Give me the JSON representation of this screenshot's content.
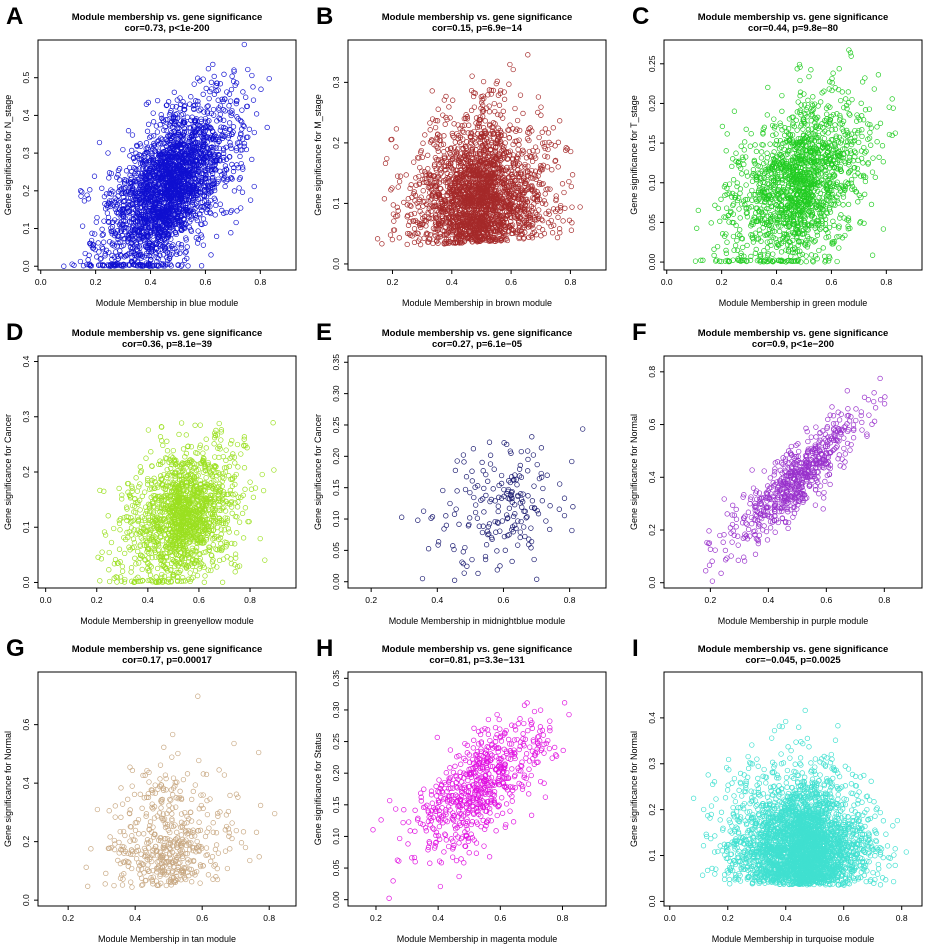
{
  "figure_title": "",
  "chart_data": [
    {
      "letter": "A",
      "type": "scatter",
      "title": "Module membership vs. gene significance",
      "subtitle": "cor=0.73, p<1e-200",
      "xlabel": "Module Membership in blue module",
      "ylabel": "Gene significance for  N_stage",
      "color": "#1010d0",
      "xlim": [
        -0.01,
        0.93
      ],
      "ylim": [
        -0.01,
        0.6
      ],
      "xticks": [
        0.0,
        0.2,
        0.4,
        0.6,
        0.8
      ],
      "yticks": [
        0.0,
        0.1,
        0.2,
        0.3,
        0.4,
        0.5
      ],
      "yticklabels": [
        "0.0",
        "0.1",
        "0.2",
        "0.3",
        "0.4",
        "0.5"
      ],
      "n_points": 2600,
      "gen": {
        "xmin": 0.03,
        "xmax": 0.92,
        "xmode": 0.45,
        "slope": 0.55,
        "intercept": -0.05,
        "noise": 0.09,
        "ymin": 0.0,
        "ymax": 0.59
      }
    },
    {
      "letter": "B",
      "type": "scatter",
      "title": "Module membership vs. gene significance",
      "subtitle": "cor=0.15, p=6.9e−14",
      "xlabel": "Module Membership in brown module",
      "ylabel": "Gene significance for  M_stage",
      "color": "#a52a2a",
      "xlim": [
        0.05,
        0.92
      ],
      "ylim": [
        -0.01,
        0.37
      ],
      "xticks": [
        0.2,
        0.4,
        0.6,
        0.8
      ],
      "yticks": [
        0.0,
        0.1,
        0.2,
        0.3
      ],
      "yticklabels": [
        "0.0",
        "0.1",
        "0.2",
        "0.3"
      ],
      "n_points": 2400,
      "gen": {
        "xmin": 0.08,
        "xmax": 0.9,
        "xmode": 0.5,
        "slope": 0.06,
        "intercept": 0.06,
        "noise": 0.07,
        "ymin": 0.0,
        "ymax": 0.36,
        "skew": true
      }
    },
    {
      "letter": "C",
      "type": "scatter",
      "title": "Module membership vs. gene significance",
      "subtitle": "cor=0.44, p=9.8e−80",
      "xlabel": "Module Membership in green module",
      "ylabel": "Gene significance for  T_stage",
      "color": "#22cc22",
      "xlim": [
        -0.01,
        0.93
      ],
      "ylim": [
        -0.01,
        0.28
      ],
      "xticks": [
        0.0,
        0.2,
        0.4,
        0.6,
        0.8
      ],
      "yticks": [
        0.0,
        0.05,
        0.1,
        0.15,
        0.2,
        0.25
      ],
      "yticklabels": [
        "0.00",
        "0.05",
        "0.10",
        "0.15",
        "0.20",
        "0.25"
      ],
      "n_points": 1600,
      "gen": {
        "xmin": 0.01,
        "xmax": 0.92,
        "xmode": 0.5,
        "slope": 0.16,
        "intercept": 0.02,
        "noise": 0.05,
        "ymin": 0.0,
        "ymax": 0.27
      }
    },
    {
      "letter": "D",
      "type": "scatter",
      "title": "Module membership vs. gene significance",
      "subtitle": "cor=0.36, p=8.1e−39",
      "xlabel": "Module Membership in greenyellow module",
      "ylabel": "Gene significance for  Cancer",
      "color": "#9be020",
      "xlim": [
        -0.03,
        0.98
      ],
      "ylim": [
        -0.01,
        0.41
      ],
      "xticks": [
        0.0,
        0.2,
        0.4,
        0.6,
        0.8
      ],
      "yticks": [
        0.0,
        0.1,
        0.2,
        0.3,
        0.4
      ],
      "yticklabels": [
        "0.0",
        "0.1",
        "0.2",
        "0.3",
        "0.4"
      ],
      "n_points": 1500,
      "gen": {
        "xmin": 0.1,
        "xmax": 0.95,
        "xmode": 0.55,
        "slope": 0.15,
        "intercept": 0.04,
        "noise": 0.06,
        "ymin": 0.0,
        "ymax": 0.4
      }
    },
    {
      "letter": "E",
      "type": "scatter",
      "title": "Module membership vs. gene significance",
      "subtitle": "cor=0.27, p=6.1e−05",
      "xlabel": "Module Membership in midnightblue module",
      "ylabel": "Gene significance for  Cancer",
      "color": "#191970",
      "xlim": [
        0.13,
        0.91
      ],
      "ylim": [
        -0.01,
        0.36
      ],
      "xticks": [
        0.2,
        0.4,
        0.6,
        0.8
      ],
      "yticks": [
        0.0,
        0.05,
        0.1,
        0.15,
        0.2,
        0.25,
        0.3,
        0.35
      ],
      "yticklabels": [
        "0.00",
        "0.05",
        "0.10",
        "0.15",
        "0.20",
        "0.25",
        "0.30",
        "0.35"
      ],
      "n_points": 200,
      "gen": {
        "xmin": 0.15,
        "xmax": 0.88,
        "xmode": 0.7,
        "slope": 0.12,
        "intercept": 0.05,
        "noise": 0.05,
        "ymin": 0.0,
        "ymax": 0.35
      }
    },
    {
      "letter": "F",
      "type": "scatter",
      "title": "Module membership vs. gene significance",
      "subtitle": "cor=0.9, p<1e−200",
      "xlabel": "Module Membership in purple module",
      "ylabel": "Gene significance for  Normal",
      "color": "#9932cc",
      "xlim": [
        0.04,
        0.93
      ],
      "ylim": [
        -0.02,
        0.86
      ],
      "xticks": [
        0.2,
        0.4,
        0.6,
        0.8
      ],
      "yticks": [
        0.0,
        0.2,
        0.4,
        0.6,
        0.8
      ],
      "yticklabels": [
        "0.0",
        "0.2",
        "0.4",
        "0.6",
        "0.8"
      ],
      "n_points": 650,
      "gen": {
        "xmin": 0.06,
        "xmax": 0.92,
        "xmode": 0.5,
        "slope": 1.0,
        "intercept": -0.1,
        "noise": 0.06,
        "ymin": 0.0,
        "ymax": 0.84
      }
    },
    {
      "letter": "G",
      "type": "scatter",
      "title": "Module membership vs. gene significance",
      "subtitle": "cor=0.17, p=0.00017",
      "xlabel": "Module Membership in tan module",
      "ylabel": "Gene significance for  Normal",
      "color": "#c8a882",
      "xlim": [
        0.11,
        0.88
      ],
      "ylim": [
        -0.02,
        0.78
      ],
      "xticks": [
        0.2,
        0.4,
        0.6,
        0.8
      ],
      "yticks": [
        0.0,
        0.2,
        0.4,
        0.6
      ],
      "yticklabels": [
        "0.0",
        "0.2",
        "0.4",
        "0.6"
      ],
      "n_points": 500,
      "gen": {
        "xmin": 0.14,
        "xmax": 0.86,
        "xmode": 0.5,
        "slope": 0.15,
        "intercept": 0.05,
        "noise": 0.14,
        "ymin": 0.0,
        "ymax": 0.76,
        "skew": true
      }
    },
    {
      "letter": "H",
      "type": "scatter",
      "title": "Module membership vs. gene significance",
      "subtitle": "cor=0.81, p=3.3e−131",
      "xlabel": "Module Membership in magenta module",
      "ylabel": "Gene significance for  Status",
      "color": "#e010e0",
      "xlim": [
        0.11,
        0.94
      ],
      "ylim": [
        -0.01,
        0.36
      ],
      "xticks": [
        0.2,
        0.4,
        0.6,
        0.8
      ],
      "yticks": [
        0.0,
        0.05,
        0.1,
        0.15,
        0.2,
        0.25,
        0.3,
        0.35
      ],
      "yticklabels": [
        "0.00",
        "0.05",
        "0.10",
        "0.15",
        "0.20",
        "0.25",
        "0.30",
        "0.35"
      ],
      "n_points": 650,
      "gen": {
        "xmin": 0.13,
        "xmax": 0.92,
        "xmode": 0.55,
        "slope": 0.33,
        "intercept": 0.0,
        "noise": 0.04,
        "ymin": 0.0,
        "ymax": 0.35
      }
    },
    {
      "letter": "I",
      "type": "scatter",
      "title": "Module membership vs. gene significance",
      "subtitle": "cor=−0.045, p=0.0025",
      "xlabel": "Module Membership in turquoise module",
      "ylabel": "Gene significance for  Normal",
      "color": "#40e0d0",
      "xlim": [
        -0.02,
        0.87
      ],
      "ylim": [
        -0.01,
        0.5
      ],
      "xticks": [
        0.0,
        0.2,
        0.4,
        0.6,
        0.8
      ],
      "yticks": [
        0.0,
        0.1,
        0.2,
        0.3,
        0.4
      ],
      "yticklabels": [
        "0.0",
        "0.1",
        "0.2",
        "0.3",
        "0.4"
      ],
      "n_points": 3200,
      "gen": {
        "xmin": 0.0,
        "xmax": 0.86,
        "xmode": 0.5,
        "slope": -0.02,
        "intercept": 0.1,
        "noise": 0.08,
        "ymin": 0.0,
        "ymax": 0.49,
        "skew": true
      }
    }
  ]
}
